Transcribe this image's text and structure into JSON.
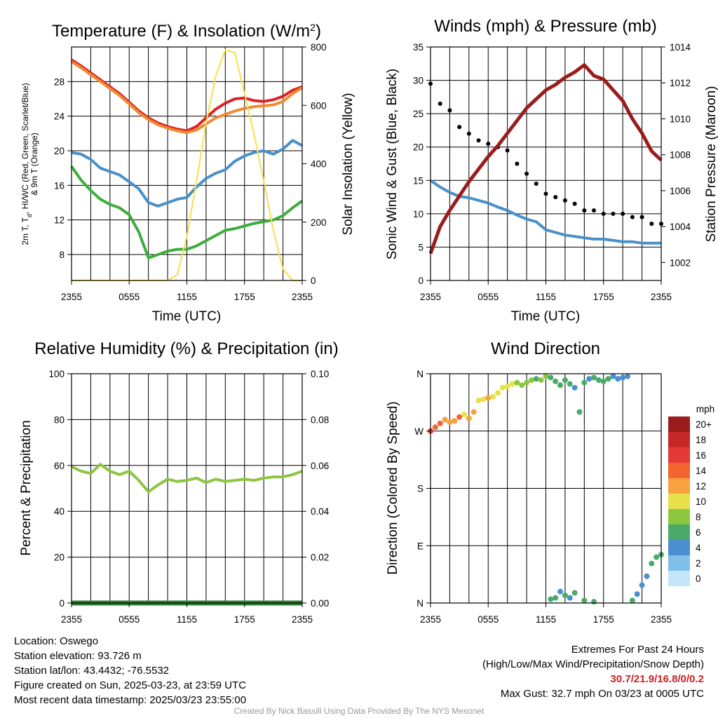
{
  "chart_data": [
    {
      "type": "line",
      "panel": "temperature",
      "title": "Temperature (F) & Insolation (W/m²)",
      "xlabel": "Time (UTC)",
      "ylabel_lines": [
        "2m T, T",
        "d",
        ", HI/WC (Red, Green, Scarlet/Blue)",
        "& 9m T (Orange)"
      ],
      "y2label": "Solar Insolation (Yellow)",
      "categories": [
        "2355",
        "0555",
        "1155",
        "1755",
        "2355"
      ],
      "ylim": [
        5,
        32
      ],
      "yticks": [
        8,
        12,
        16,
        20,
        24,
        28
      ],
      "y2lim": [
        0,
        800
      ],
      "y2ticks": [
        0,
        200,
        400,
        600,
        800
      ],
      "x": [
        0,
        1,
        2,
        3,
        4,
        5,
        6,
        7,
        8,
        9,
        10,
        11,
        12,
        13,
        14,
        15,
        16,
        17,
        18,
        19,
        20,
        21,
        22,
        23,
        24
      ],
      "series": [
        {
          "name": "2m T",
          "color": "#dd2222",
          "axis": "left",
          "values": [
            30.5,
            29.8,
            29.0,
            28.2,
            27.4,
            26.6,
            25.6,
            24.6,
            23.8,
            23.2,
            22.8,
            22.5,
            22.3,
            22.8,
            23.8,
            24.8,
            25.5,
            26.0,
            26.1,
            25.8,
            25.7,
            25.9,
            26.3,
            27.0,
            27.4
          ]
        },
        {
          "name": "9m T",
          "color": "#f08a33",
          "axis": "left",
          "values": [
            30.3,
            29.6,
            28.8,
            28.0,
            27.2,
            26.4,
            25.4,
            24.4,
            23.6,
            23.0,
            22.6,
            22.3,
            22.1,
            22.4,
            23.1,
            23.8,
            24.2,
            24.6,
            24.9,
            25.1,
            25.2,
            25.3,
            25.7,
            26.6,
            27.3
          ]
        },
        {
          "name": "Td",
          "color": "#3dae3d",
          "axis": "left",
          "values": [
            18.2,
            16.6,
            15.4,
            14.4,
            13.8,
            13.4,
            12.6,
            10.6,
            7.6,
            8.0,
            8.4,
            8.6,
            8.6,
            9.0,
            9.6,
            10.2,
            10.8,
            11.0,
            11.3,
            11.6,
            11.8,
            12.0,
            12.5,
            13.4,
            14.2
          ]
        },
        {
          "name": "WC",
          "color": "#4a90c8",
          "axis": "left",
          "values": [
            19.8,
            19.6,
            19.0,
            18.0,
            17.6,
            17.2,
            16.4,
            15.6,
            14.0,
            13.6,
            14.0,
            14.4,
            14.6,
            15.8,
            16.8,
            17.4,
            17.8,
            18.8,
            19.4,
            19.8,
            20.0,
            19.6,
            20.2,
            21.2,
            20.6
          ]
        },
        {
          "name": "Solar",
          "color": "#f7e04a",
          "axis": "right",
          "values": [
            0,
            0,
            0,
            0,
            0,
            0,
            0,
            0,
            0,
            0,
            0,
            20,
            150,
            340,
            540,
            700,
            790,
            780,
            640,
            500,
            340,
            170,
            40,
            0,
            0
          ]
        }
      ]
    },
    {
      "type": "scatter",
      "panel": "winds",
      "title": "Winds (mph) & Pressure (mb)",
      "xlabel": "Time (UTC)",
      "ylabel": "Sonic Wind & Gust (Blue, Black)",
      "y2label": "Station Pressure (Maroon)",
      "categories": [
        "2355",
        "0555",
        "1155",
        "1755",
        "2355"
      ],
      "ylim": [
        0,
        35
      ],
      "yticks": [
        0,
        5,
        10,
        15,
        20,
        25,
        30,
        35
      ],
      "y2lim": [
        1001,
        1014
      ],
      "y2ticks": [
        1002,
        1004,
        1006,
        1008,
        1010,
        1012,
        1014
      ],
      "x": [
        0,
        1,
        2,
        3,
        4,
        5,
        6,
        7,
        8,
        9,
        10,
        11,
        12,
        13,
        14,
        15,
        16,
        17,
        18,
        19,
        20,
        21,
        22,
        23,
        24
      ],
      "series": [
        {
          "name": "Sonic Wind",
          "color": "#4a90c8",
          "axis": "left",
          "values": [
            15.0,
            14.0,
            13.2,
            12.6,
            12.4,
            12.0,
            11.6,
            11.0,
            10.5,
            9.8,
            9.2,
            8.8,
            7.6,
            7.2,
            6.8,
            6.6,
            6.4,
            6.2,
            6.2,
            6.0,
            5.8,
            5.8,
            5.6,
            5.6,
            5.6
          ]
        },
        {
          "name": "Gust",
          "color": "#000000",
          "axis": "left",
          "values": [
            29.5,
            26.5,
            25.5,
            23.0,
            22.0,
            21.0,
            20.5,
            20.0,
            19.5,
            17.5,
            16.0,
            14.5,
            13.0,
            12.5,
            12.0,
            11.5,
            10.5,
            10.5,
            10.0,
            10.0,
            10.0,
            9.5,
            9.5,
            8.5,
            8.5
          ]
        },
        {
          "name": "Pressure",
          "color": "#9b1c1c",
          "axis": "right",
          "values": [
            1002.5,
            1004.0,
            1004.9,
            1005.7,
            1006.5,
            1007.2,
            1007.9,
            1008.5,
            1009.2,
            1009.9,
            1010.6,
            1011.1,
            1011.6,
            1011.9,
            1012.3,
            1012.6,
            1013.0,
            1012.4,
            1012.2,
            1011.6,
            1011.0,
            1010.0,
            1009.2,
            1008.2,
            1007.7
          ]
        }
      ]
    },
    {
      "type": "line",
      "panel": "humidity",
      "title": "Relative Humidity (%) & Precipitation (in)",
      "ylabel": "Percent & Precipitation",
      "categories": [
        "2355",
        "0555",
        "1155",
        "1755",
        "2355"
      ],
      "ylim": [
        0,
        100
      ],
      "yticks": [
        0,
        20,
        40,
        60,
        80,
        100
      ],
      "y2lim": [
        0,
        0.1
      ],
      "y2ticks": [
        "0.00",
        "0.02",
        "0.04",
        "0.06",
        "0.08",
        "0.10"
      ],
      "x": [
        0,
        1,
        2,
        3,
        4,
        5,
        6,
        7,
        8,
        9,
        10,
        11,
        12,
        13,
        14,
        15,
        16,
        17,
        18,
        19,
        20,
        21,
        22,
        23,
        24
      ],
      "series": [
        {
          "name": "RH",
          "color": "#8cc63f",
          "axis": "left",
          "values": [
            59.5,
            57.5,
            56.5,
            60.5,
            57.5,
            56.0,
            57.5,
            53.5,
            48.5,
            51.5,
            54.0,
            53.0,
            53.5,
            54.5,
            52.5,
            54.0,
            53.0,
            53.5,
            54.0,
            53.5,
            54.5,
            55.0,
            55.0,
            56.0,
            57.5
          ]
        },
        {
          "name": "Precipitation",
          "color": "#2e7d32",
          "axis": "right",
          "values": [
            0,
            0,
            0,
            0,
            0,
            0,
            0,
            0,
            0,
            0,
            0,
            0,
            0,
            0,
            0,
            0,
            0,
            0,
            0,
            0,
            0,
            0,
            0,
            0,
            0
          ]
        }
      ]
    },
    {
      "type": "scatter",
      "panel": "wind-direction",
      "title": "Wind Direction",
      "ylabel": "Direction (Colored By Speed)",
      "categories": [
        "2355",
        "0555",
        "1155",
        "1755",
        "2355"
      ],
      "yticks": [
        "N",
        "E",
        "S",
        "W",
        "N"
      ],
      "ylim": [
        0,
        360
      ],
      "colorbar": {
        "title": "mph",
        "labels": [
          "20+",
          "18",
          "16",
          "14",
          "12",
          "10",
          "8",
          "6",
          "4",
          "2",
          "0"
        ],
        "colors": [
          "#9b1c1c",
          "#c62828",
          "#e53935",
          "#f26430",
          "#f9a03f",
          "#e8e04a",
          "#8cc63f",
          "#4aaa6a",
          "#4a8fcf",
          "#7fbfe8",
          "#c2e6f8"
        ]
      },
      "x": [
        0.0,
        0.5,
        1.0,
        1.5,
        2.0,
        2.5,
        3.0,
        3.5,
        4.0,
        4.5,
        5.0,
        5.5,
        6.0,
        6.5,
        7.0,
        7.5,
        8.0,
        8.5,
        9.0,
        9.5,
        10.0,
        10.5,
        11.0,
        11.5,
        12.0,
        12.5,
        13.0,
        13.5,
        14.0,
        14.5,
        15.0,
        15.5,
        16.0,
        16.5,
        17.0,
        17.5,
        18.0,
        18.5,
        19.0,
        19.5,
        20.0,
        20.5,
        12.5,
        13.0,
        13.5,
        14.0,
        14.5,
        15.0,
        16.0,
        17.0,
        21.0,
        21.5,
        22.0,
        22.5,
        23.0,
        23.5,
        24.0
      ],
      "values": [
        270,
        276,
        282,
        288,
        284,
        286,
        292,
        296,
        290,
        300,
        318,
        320,
        322,
        324,
        330,
        338,
        340,
        344,
        346,
        342,
        346,
        350,
        352,
        350,
        356,
        354,
        348,
        342,
        350,
        344,
        338,
        300,
        346,
        352,
        354,
        350,
        348,
        352,
        356,
        352,
        354,
        356,
        6,
        8,
        18,
        12,
        8,
        16,
        4,
        2,
        4,
        14,
        28,
        42,
        62,
        72,
        76
      ],
      "speeds": [
        16,
        14,
        14,
        12,
        12,
        12,
        14,
        11,
        12,
        13,
        11,
        10,
        12,
        11,
        11,
        11,
        10,
        10,
        8,
        9,
        8,
        8,
        7,
        8,
        8,
        7,
        7,
        6,
        6,
        6,
        5,
        6,
        6,
        5,
        6,
        6,
        6,
        6,
        5,
        5,
        5,
        4,
        7,
        6,
        4,
        6,
        5,
        6,
        6,
        6,
        6,
        5,
        4,
        5,
        6,
        6,
        6
      ]
    }
  ],
  "footer": {
    "location": "Location: Oswego",
    "elevation": "Station elevation: 93.726 m",
    "latlon": "Station lat/lon: 43.4432; -76.5532",
    "created": "Figure created on Sun, 2025-03-23, at 23:59 UTC",
    "recent": "Most recent data timestamp: 2025/03/23 23:55:00"
  },
  "extremes": {
    "title": "Extremes For Past 24 Hours",
    "subtitle": "(High/Low/Max Wind/Precipitation/Snow Depth)",
    "values": "30.7/21.9/16.8/0/0.2",
    "gust": "Max Gust: 32.7 mph On 03/23 at 0005 UTC"
  },
  "credit": "Created By Nick Bassill Using Data Provided By The NYS Mesonet"
}
